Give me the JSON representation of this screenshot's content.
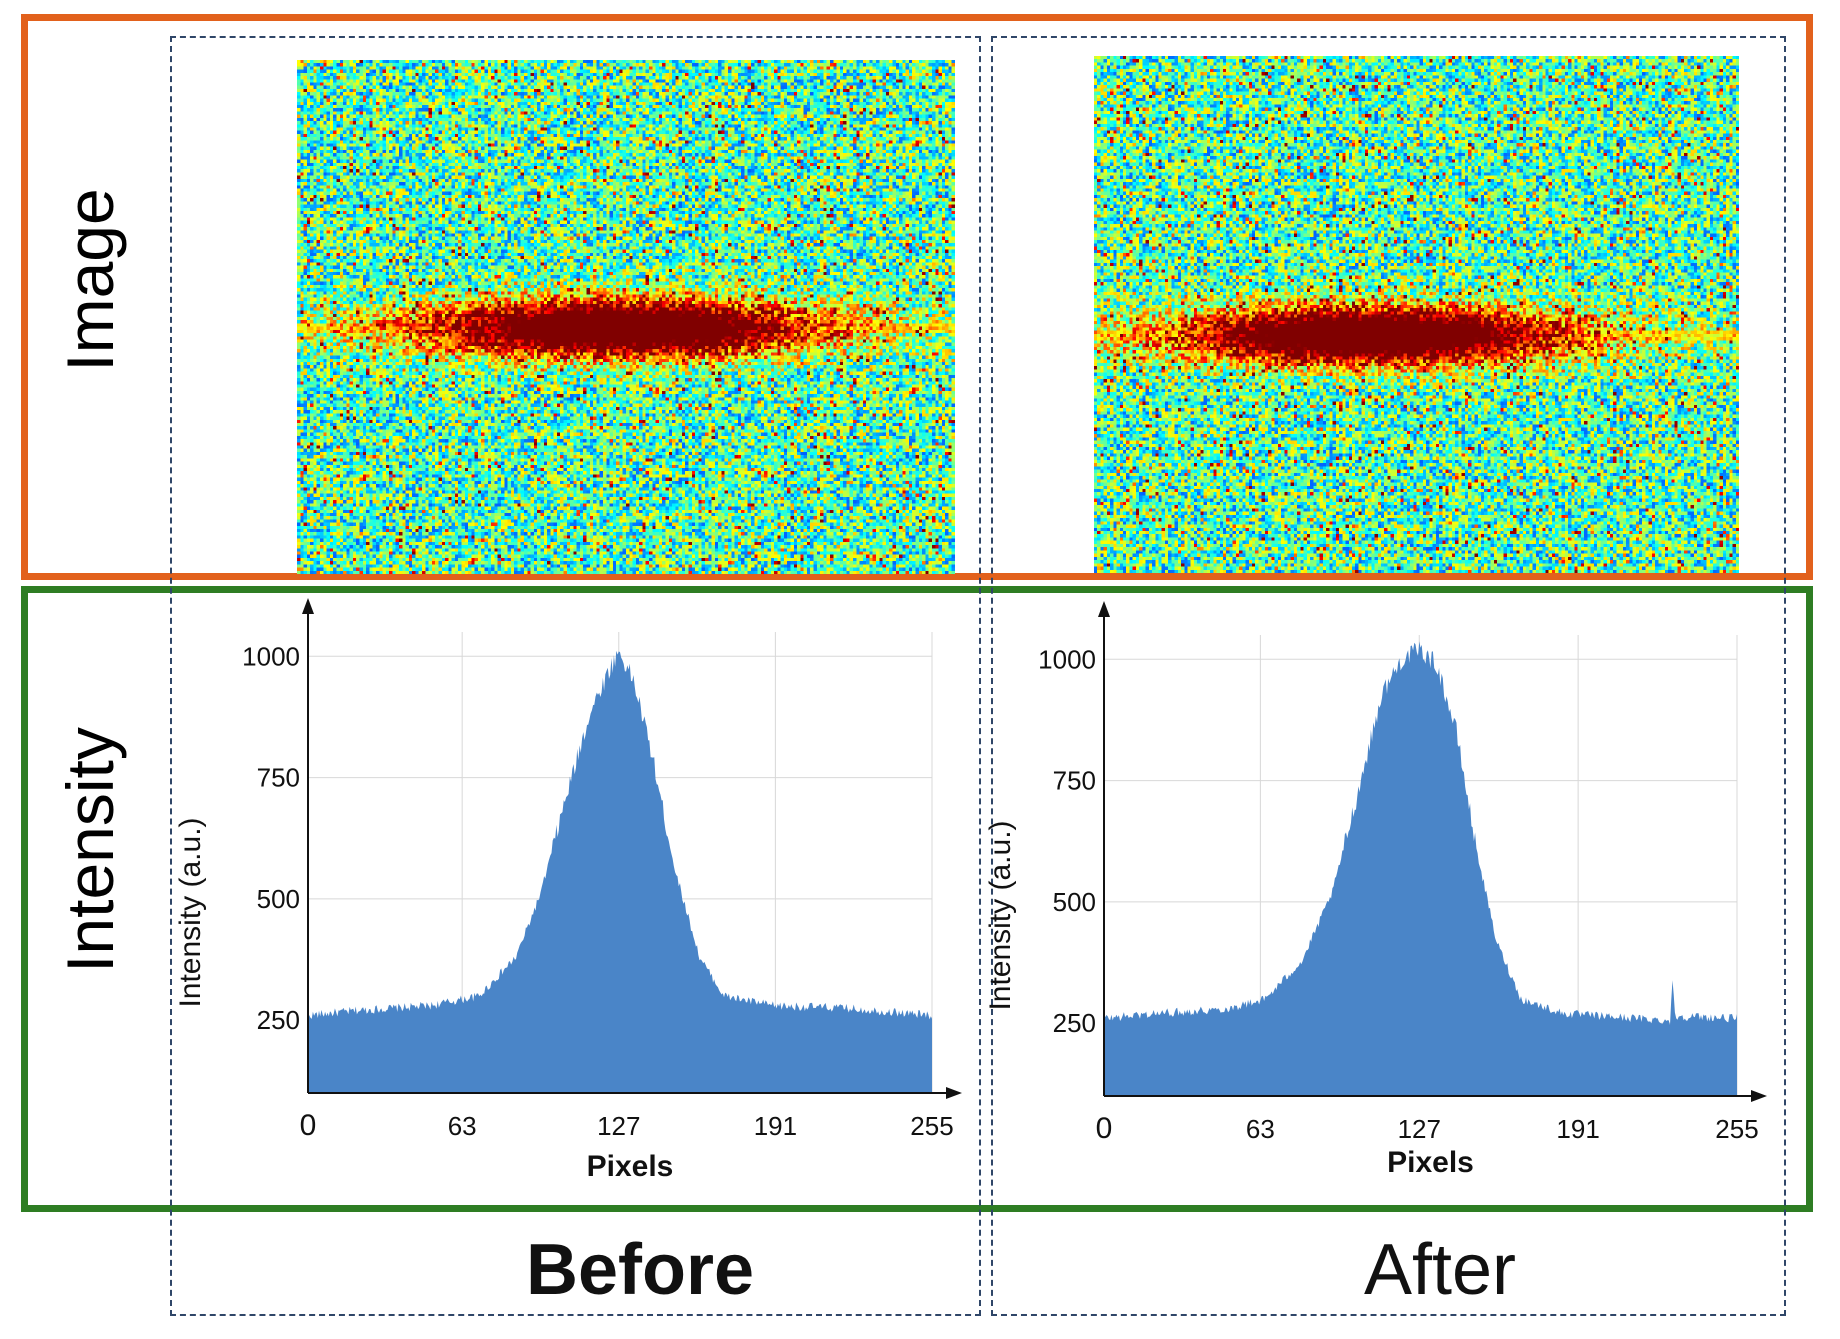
{
  "row_labels": {
    "image": "Image",
    "intensity": "Intensity"
  },
  "column_labels": {
    "before": "Before",
    "after": "After"
  },
  "colors": {
    "image_border": "#e2611c",
    "intensity_border": "#2e7d23",
    "dashed": "#2f4668",
    "bar_fill": "#4a85c8"
  },
  "chart_data": [
    {
      "type": "area",
      "name": "Before",
      "xlabel": "Pixels",
      "ylabel": "Intensity (a.u.)",
      "xlim": [
        0,
        255
      ],
      "ylim": [
        100,
        1050
      ],
      "x_ticks": [
        0,
        63,
        127,
        191,
        255
      ],
      "y_ticks": [
        250,
        500,
        750,
        1000
      ],
      "grid": true,
      "profile": [
        [
          0,
          260
        ],
        [
          20,
          270
        ],
        [
          50,
          280
        ],
        [
          70,
          300
        ],
        [
          85,
          380
        ],
        [
          95,
          510
        ],
        [
          105,
          700
        ],
        [
          115,
          880
        ],
        [
          122,
          960
        ],
        [
          127,
          1010
        ],
        [
          133,
          950
        ],
        [
          140,
          810
        ],
        [
          150,
          560
        ],
        [
          160,
          380
        ],
        [
          170,
          300
        ],
        [
          190,
          280
        ],
        [
          220,
          275
        ],
        [
          255,
          260
        ]
      ]
    },
    {
      "type": "area",
      "name": "After",
      "xlabel": "Pixels",
      "ylabel": "Intensity (a.u.)",
      "xlim": [
        0,
        255
      ],
      "ylim": [
        100,
        1050
      ],
      "x_ticks": [
        0,
        63,
        127,
        191,
        255
      ],
      "y_ticks": [
        250,
        500,
        750,
        1000
      ],
      "grid": true,
      "profile": [
        [
          0,
          260
        ],
        [
          20,
          270
        ],
        [
          50,
          280
        ],
        [
          65,
          300
        ],
        [
          80,
          380
        ],
        [
          92,
          520
        ],
        [
          102,
          720
        ],
        [
          112,
          930
        ],
        [
          120,
          1000
        ],
        [
          127,
          1020
        ],
        [
          134,
          990
        ],
        [
          142,
          850
        ],
        [
          150,
          610
        ],
        [
          158,
          420
        ],
        [
          168,
          300
        ],
        [
          185,
          270
        ],
        [
          215,
          260
        ],
        [
          228,
          255
        ],
        [
          229,
          340
        ],
        [
          230,
          265
        ],
        [
          255,
          260
        ]
      ]
    }
  ]
}
